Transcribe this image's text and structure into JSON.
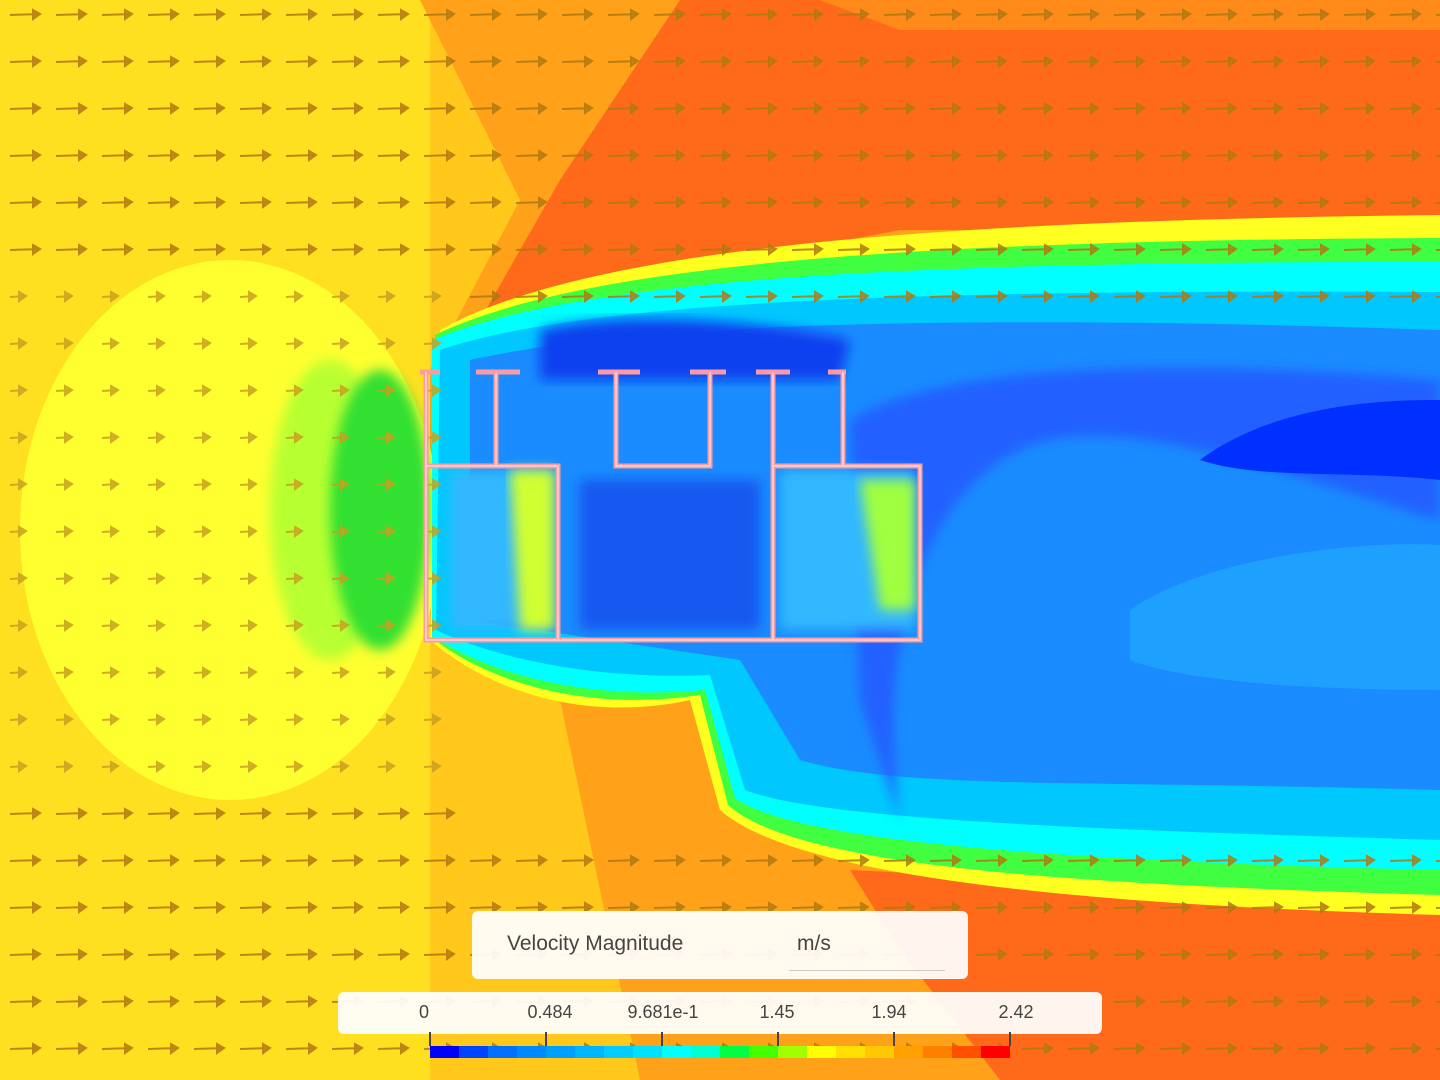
{
  "legend": {
    "title": "Velocity Magnitude",
    "unit": "m/s",
    "ticks": [
      "0",
      "0.484",
      "9.681e-1",
      "1.45",
      "1.94",
      "2.42"
    ],
    "colors": [
      "#0000ff",
      "#0044ff",
      "#0070ff",
      "#0088ff",
      "#00a0ff",
      "#00b4ff",
      "#00ccff",
      "#00e0ff",
      "#00ffff",
      "#00ffd0",
      "#00ff44",
      "#44ff00",
      "#a0ff00",
      "#ffff00",
      "#ffe000",
      "#ffc800",
      "#ffa000",
      "#ff8000",
      "#ff5000",
      "#ff0000"
    ]
  },
  "colors": {
    "free_stream": "#ffc81a",
    "stagnation": "#ffff20",
    "acceleration": "#ff6020",
    "wake": "#1a8cff",
    "building_outline": "#ff9aa0"
  }
}
